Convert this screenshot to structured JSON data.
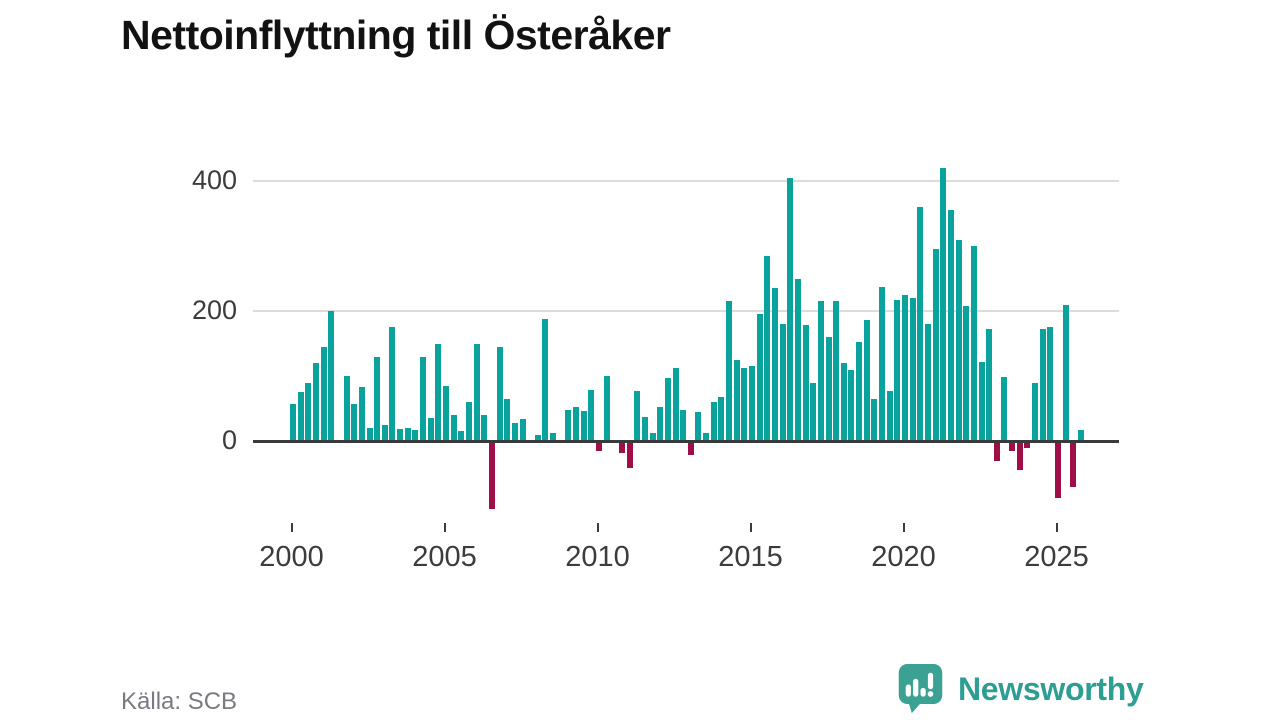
{
  "title": "Nettoinflyttning till Österåker",
  "source": "Källa: SCB",
  "brand": {
    "name": "Newsworthy",
    "icon": "bar-chart-speech-bubble-icon"
  },
  "colors": {
    "positive_bar": "#0aa29c",
    "negative_bar": "#a00e48",
    "gridline": "#dcdcdc",
    "axis": "#3a3a3a",
    "tick_text": "#3c3c3c",
    "brand_teal": "#2e9d93"
  },
  "chart_data": {
    "type": "bar",
    "title": "Nettoinflyttning till Österåker",
    "frequency": "quarterly",
    "start_period": "2000-Q1",
    "end_period": "2025-Q4",
    "ylabel": "",
    "xlabel": "",
    "y_ticks": [
      0,
      200,
      400
    ],
    "ylim": [
      -130,
      440
    ],
    "x_tick_labels": [
      "2000",
      "2005",
      "2010",
      "2015",
      "2020",
      "2025"
    ],
    "grid": "horizontal",
    "legend": "none",
    "values": [
      57,
      75,
      90,
      120,
      145,
      200,
      0,
      100,
      57,
      83,
      20,
      130,
      25,
      175,
      18,
      20,
      17,
      130,
      35,
      150,
      85,
      40,
      15,
      60,
      150,
      40,
      -105,
      145,
      65,
      28,
      34,
      0,
      10,
      188,
      13,
      0,
      48,
      53,
      46,
      78,
      -15,
      100,
      0,
      -18,
      -42,
      77,
      37,
      12,
      53,
      97,
      113,
      47,
      -21,
      45,
      13,
      60,
      68,
      215,
      125,
      112,
      115,
      195,
      285,
      235,
      180,
      405,
      250,
      178,
      89,
      215,
      160,
      215,
      120,
      110,
      153,
      186,
      64,
      237,
      77,
      217,
      224,
      220,
      360,
      180,
      295,
      420,
      355,
      310,
      208,
      300,
      121,
      173,
      -31,
      99,
      -16,
      -45,
      -11,
      90,
      172,
      176,
      -88,
      210,
      -70,
      17
    ]
  }
}
